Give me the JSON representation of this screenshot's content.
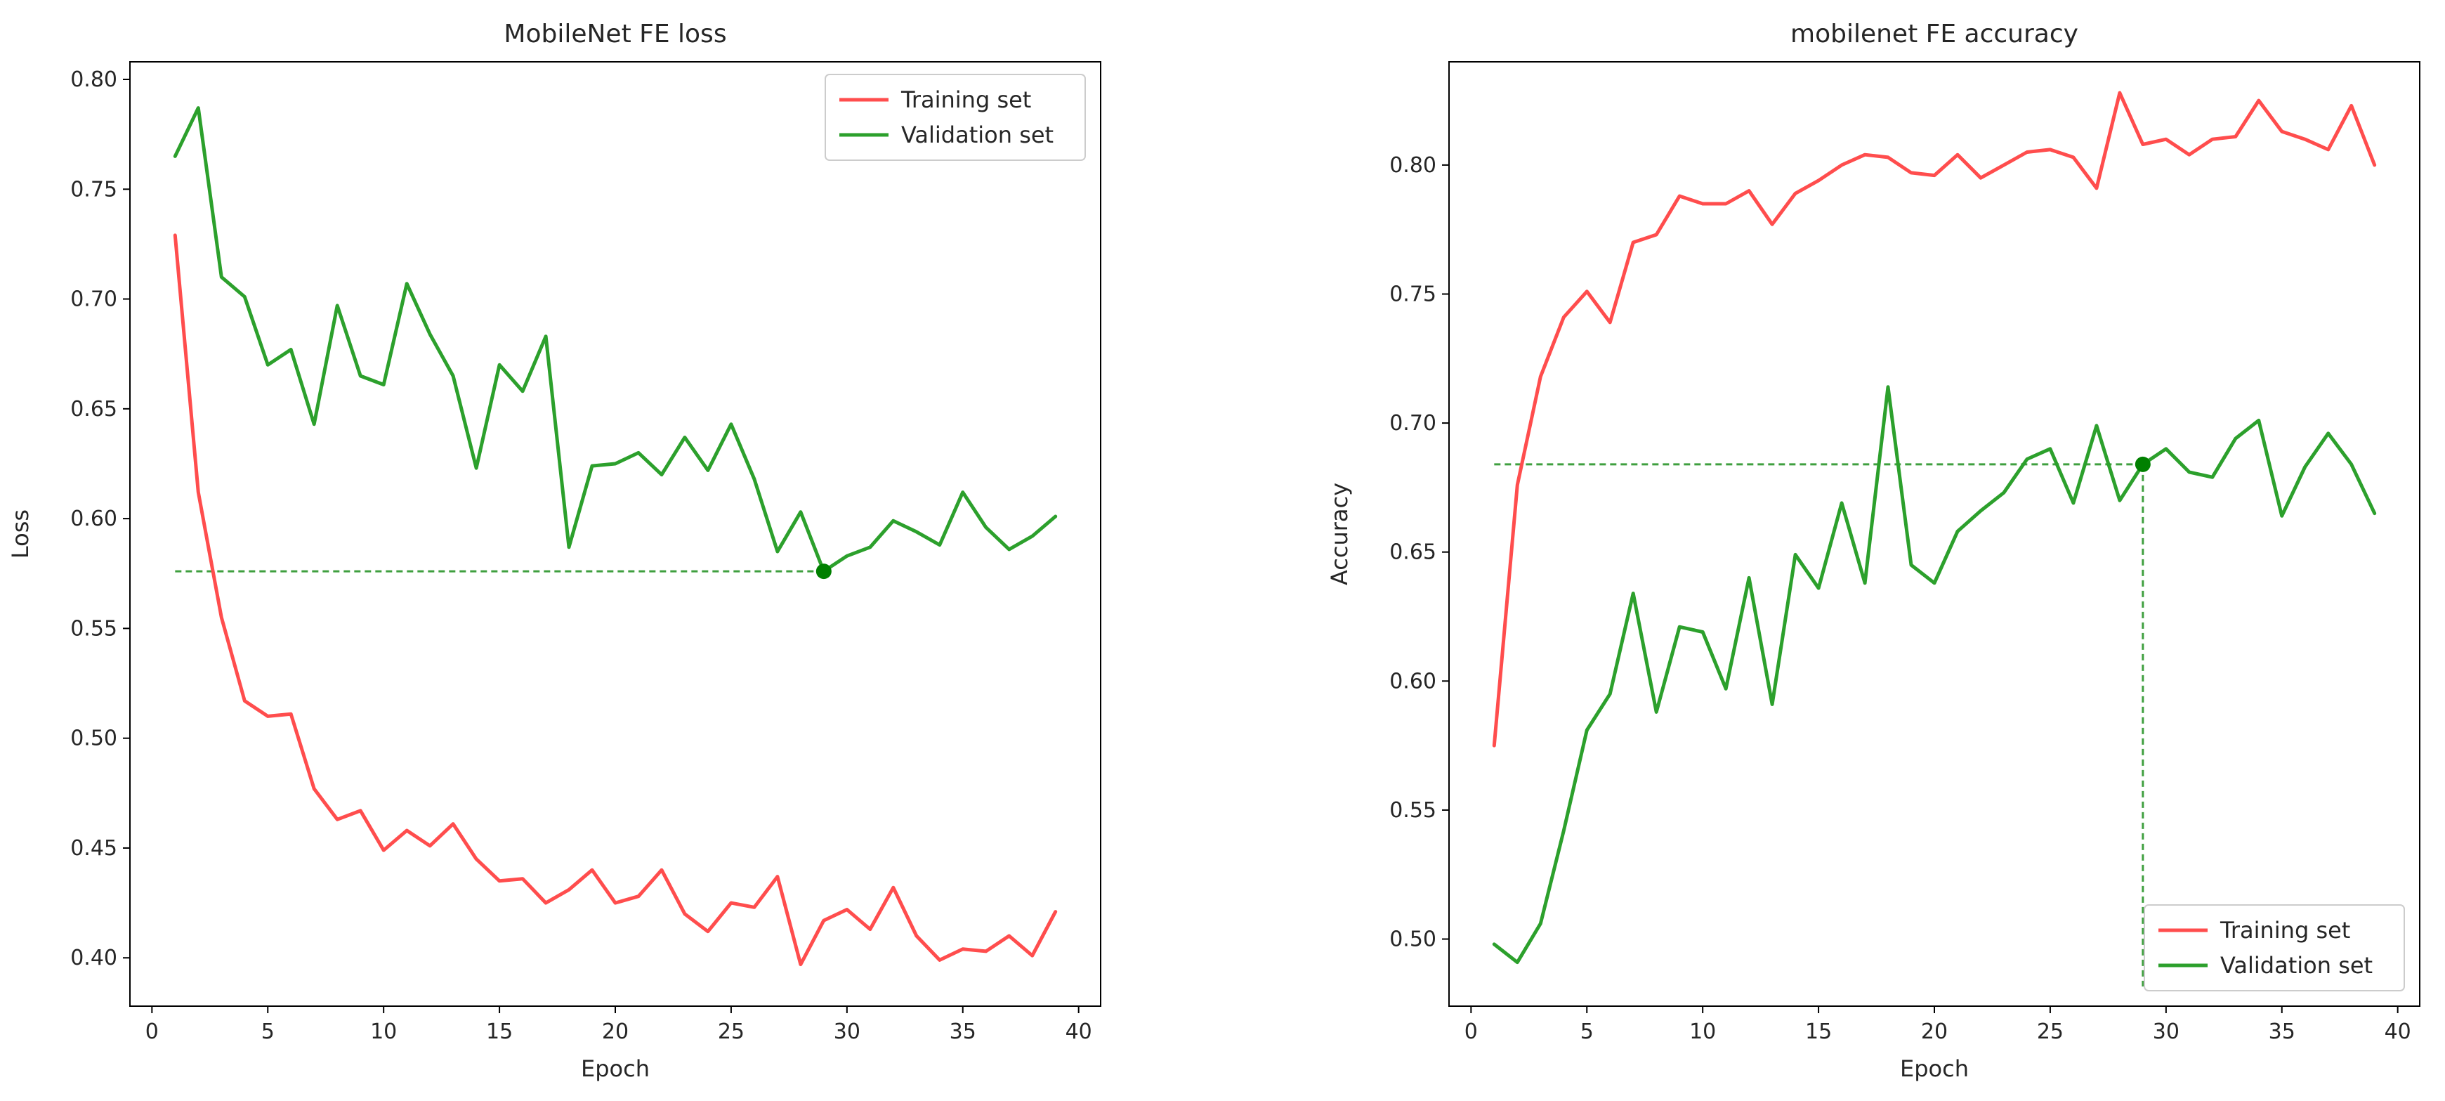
{
  "chart_data": [
    {
      "type": "line",
      "title": "MobileNet FE loss",
      "xlabel": "Epoch",
      "ylabel": "Loss",
      "xlim": [
        -0.95,
        40.95
      ],
      "ylim": [
        0.378,
        0.808
      ],
      "xticks": [
        0,
        5,
        10,
        15,
        20,
        25,
        30,
        35,
        40
      ],
      "yticks": [
        0.4,
        0.45,
        0.5,
        0.55,
        0.6,
        0.65,
        0.7,
        0.75,
        0.8
      ],
      "x": [
        1,
        2,
        3,
        4,
        5,
        6,
        7,
        8,
        9,
        10,
        11,
        12,
        13,
        14,
        15,
        16,
        17,
        18,
        19,
        20,
        21,
        22,
        23,
        24,
        25,
        26,
        27,
        28,
        29,
        30,
        31,
        32,
        33,
        34,
        35,
        36,
        37,
        38,
        39
      ],
      "series": [
        {
          "name": "Training set",
          "color": "#ff4d4d",
          "values": [
            0.729,
            0.612,
            0.555,
            0.517,
            0.51,
            0.511,
            0.477,
            0.463,
            0.467,
            0.449,
            0.458,
            0.451,
            0.461,
            0.445,
            0.435,
            0.436,
            0.425,
            0.431,
            0.44,
            0.425,
            0.428,
            0.44,
            0.42,
            0.412,
            0.425,
            0.423,
            0.437,
            0.397,
            0.417,
            0.422,
            0.413,
            0.432,
            0.41,
            0.399,
            0.404,
            0.403,
            0.41,
            0.401,
            0.421
          ]
        },
        {
          "name": "Validation set",
          "color": "#2ca02c",
          "values": [
            0.765,
            0.787,
            0.71,
            0.701,
            0.67,
            0.677,
            0.643,
            0.697,
            0.665,
            0.661,
            0.707,
            0.684,
            0.665,
            0.623,
            0.67,
            0.658,
            0.683,
            0.587,
            0.624,
            0.625,
            0.63,
            0.62,
            0.637,
            0.622,
            0.643,
            0.618,
            0.585,
            0.603,
            0.576,
            0.583,
            0.587,
            0.599,
            0.594,
            0.588,
            0.612,
            0.596,
            0.586,
            0.592,
            0.601
          ]
        }
      ],
      "highlight": {
        "x": 29,
        "y": 0.576,
        "color": "#008000"
      },
      "legend": {
        "location": "upper right"
      },
      "grid": false
    },
    {
      "type": "line",
      "title": "mobilenet FE accuracy",
      "xlabel": "Epoch",
      "ylabel": "Accuracy",
      "xlim": [
        -0.95,
        40.95
      ],
      "ylim": [
        0.474,
        0.84
      ],
      "xticks": [
        0,
        5,
        10,
        15,
        20,
        25,
        30,
        35,
        40
      ],
      "yticks": [
        0.5,
        0.55,
        0.6,
        0.65,
        0.7,
        0.75,
        0.8
      ],
      "x": [
        1,
        2,
        3,
        4,
        5,
        6,
        7,
        8,
        9,
        10,
        11,
        12,
        13,
        14,
        15,
        16,
        17,
        18,
        19,
        20,
        21,
        22,
        23,
        24,
        25,
        26,
        27,
        28,
        29,
        30,
        31,
        32,
        33,
        34,
        35,
        36,
        37,
        38,
        39
      ],
      "series": [
        {
          "name": "Training set",
          "color": "#ff4d4d",
          "values": [
            0.575,
            0.676,
            0.718,
            0.741,
            0.751,
            0.739,
            0.77,
            0.773,
            0.788,
            0.785,
            0.785,
            0.79,
            0.777,
            0.789,
            0.794,
            0.8,
            0.804,
            0.803,
            0.797,
            0.796,
            0.804,
            0.795,
            0.8,
            0.805,
            0.806,
            0.803,
            0.791,
            0.828,
            0.808,
            0.81,
            0.804,
            0.81,
            0.811,
            0.825,
            0.813,
            0.81,
            0.806,
            0.823,
            0.8
          ]
        },
        {
          "name": "Validation set",
          "color": "#2ca02c",
          "values": [
            0.498,
            0.491,
            0.506,
            0.542,
            0.581,
            0.595,
            0.634,
            0.588,
            0.621,
            0.619,
            0.597,
            0.64,
            0.591,
            0.649,
            0.636,
            0.669,
            0.638,
            0.714,
            0.645,
            0.638,
            0.658,
            0.666,
            0.673,
            0.686,
            0.69,
            0.669,
            0.699,
            0.67,
            0.684,
            0.69,
            0.681,
            0.679,
            0.694,
            0.701,
            0.664,
            0.683,
            0.696,
            0.684,
            0.665
          ]
        }
      ],
      "highlight": {
        "x": 29,
        "y": 0.684,
        "color": "#008000"
      },
      "legend": {
        "location": "lower right"
      },
      "grid": false
    }
  ]
}
